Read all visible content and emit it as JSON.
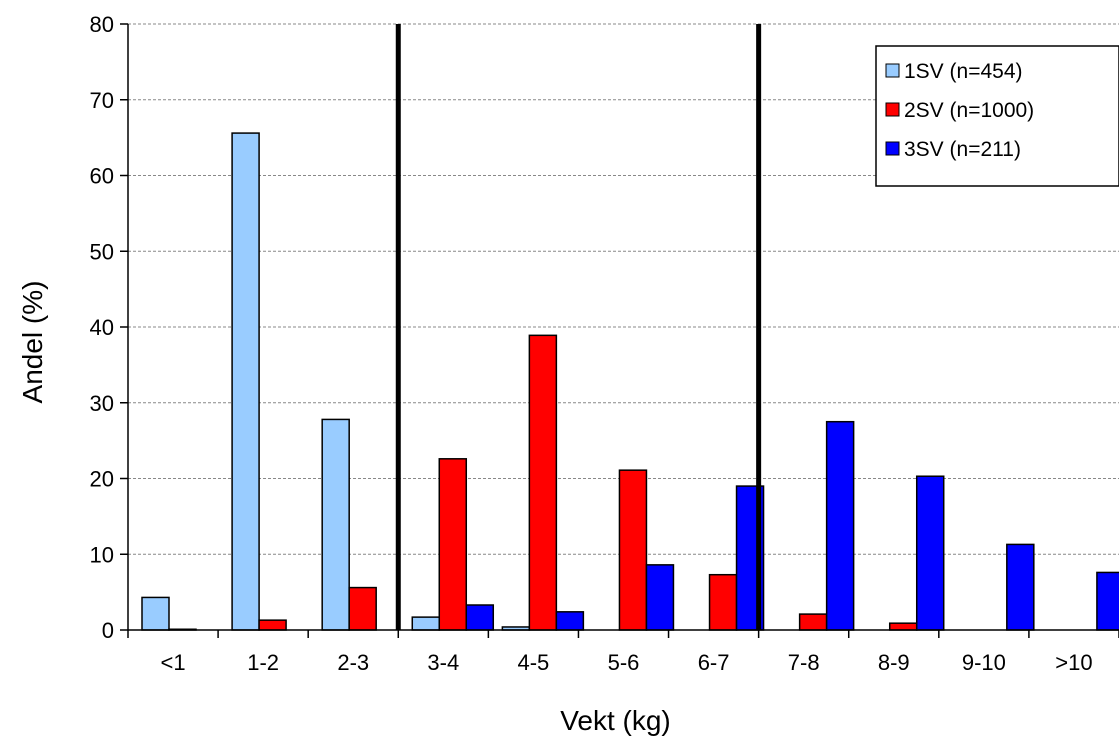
{
  "chart_data": {
    "type": "bar",
    "title": "",
    "xlabel": "Vekt (kg)",
    "ylabel": "Andel (%)",
    "ylim": [
      0,
      80
    ],
    "yticks": [
      0,
      10,
      20,
      30,
      40,
      50,
      60,
      70,
      80
    ],
    "grid": "horizontal dashed",
    "legend_position": "top-right",
    "categories": [
      "<1",
      "1-2",
      "2-3",
      "3-4",
      "4-5",
      "5-6",
      "6-7",
      "7-8",
      "8-9",
      "9-10",
      ">10"
    ],
    "series": [
      {
        "name": "1SV (n=454)",
        "color": "#99ccff",
        "values": [
          4.3,
          65.6,
          27.8,
          1.7,
          0.4,
          0,
          0,
          0,
          0,
          0,
          0
        ]
      },
      {
        "name": "2SV (n=1000)",
        "color": "#ff0000",
        "values": [
          0.1,
          1.3,
          5.6,
          22.6,
          38.9,
          21.1,
          7.3,
          2.1,
          0.9,
          0,
          0
        ]
      },
      {
        "name": "3SV (n=211)",
        "color": "#0000ff",
        "values": [
          0,
          0,
          0,
          3.3,
          2.4,
          8.6,
          19.0,
          27.5,
          20.3,
          11.3,
          7.6
        ]
      }
    ],
    "separators_between_categories": [
      "2-3|3-4",
      "6-7|7-8"
    ]
  }
}
